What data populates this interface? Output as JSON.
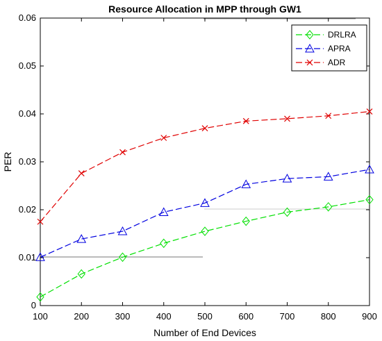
{
  "chart_data": {
    "type": "line",
    "title": "Resource Allocation in MPP through GW1",
    "xlabel": "Number of End Devices",
    "ylabel": "PER",
    "x": [
      100,
      200,
      300,
      400,
      500,
      600,
      700,
      800,
      900
    ],
    "xlim": [
      100,
      900
    ],
    "ylim": [
      0,
      0.06
    ],
    "xticks": [
      "100",
      "200",
      "300",
      "400",
      "500",
      "600",
      "700",
      "800",
      "900"
    ],
    "yticks": [
      "0",
      "0.01",
      "0.02",
      "0.03",
      "0.04",
      "0.05",
      "0.06"
    ],
    "ytick_values": [
      0,
      0.01,
      0.02,
      0.03,
      0.04,
      0.05,
      0.06
    ],
    "grid": false,
    "legend_position": "top-right",
    "series": [
      {
        "name": "DRLRA",
        "color": "#00e000",
        "marker": "diamond",
        "values": [
          0.0018,
          0.0066,
          0.0101,
          0.013,
          0.0155,
          0.0176,
          0.0195,
          0.0206,
          0.0221
        ]
      },
      {
        "name": "APRA",
        "color": "#0000e0",
        "marker": "triangle",
        "values": [
          0.0101,
          0.0139,
          0.0155,
          0.0195,
          0.0214,
          0.0253,
          0.0265,
          0.0269,
          0.0284
        ]
      },
      {
        "name": "ADR",
        "color": "#e00000",
        "marker": "x",
        "values": [
          0.0175,
          0.0276,
          0.032,
          0.035,
          0.037,
          0.0385,
          0.039,
          0.0396,
          0.0405
        ]
      }
    ]
  }
}
